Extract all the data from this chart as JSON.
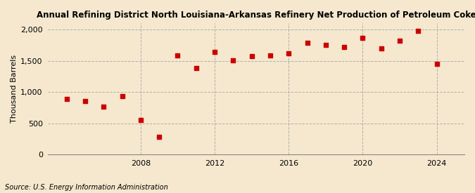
{
  "title": "Annual Refining District North Louisiana-Arkansas Refinery Net Production of Petroleum Coke",
  "ylabel": "Thousand Barrels",
  "source": "Source: U.S. Energy Information Administration",
  "background_color": "#f5e8ce",
  "marker_color": "#cc0000",
  "years": [
    2004,
    2005,
    2006,
    2007,
    2008,
    2009,
    2010,
    2011,
    2012,
    2013,
    2014,
    2015,
    2016,
    2017,
    2018,
    2019,
    2020,
    2021,
    2022,
    2023,
    2024
  ],
  "values": [
    890,
    855,
    770,
    940,
    555,
    285,
    1585,
    1385,
    1640,
    1505,
    1580,
    1590,
    1620,
    1790,
    1760,
    1720,
    1870,
    1700,
    1820,
    1985,
    1455
  ],
  "ylim": [
    0,
    2100
  ],
  "yticks": [
    0,
    500,
    1000,
    1500,
    2000
  ],
  "ytick_labels": [
    "0",
    "500",
    "1,000",
    "1,500",
    "2,000"
  ],
  "xlim": [
    2003.0,
    2025.5
  ],
  "xticks": [
    2008,
    2012,
    2016,
    2020,
    2024
  ],
  "grid_color": "#aaaaaa",
  "title_fontsize": 8.5,
  "axis_fontsize": 8.0,
  "source_fontsize": 7.0
}
